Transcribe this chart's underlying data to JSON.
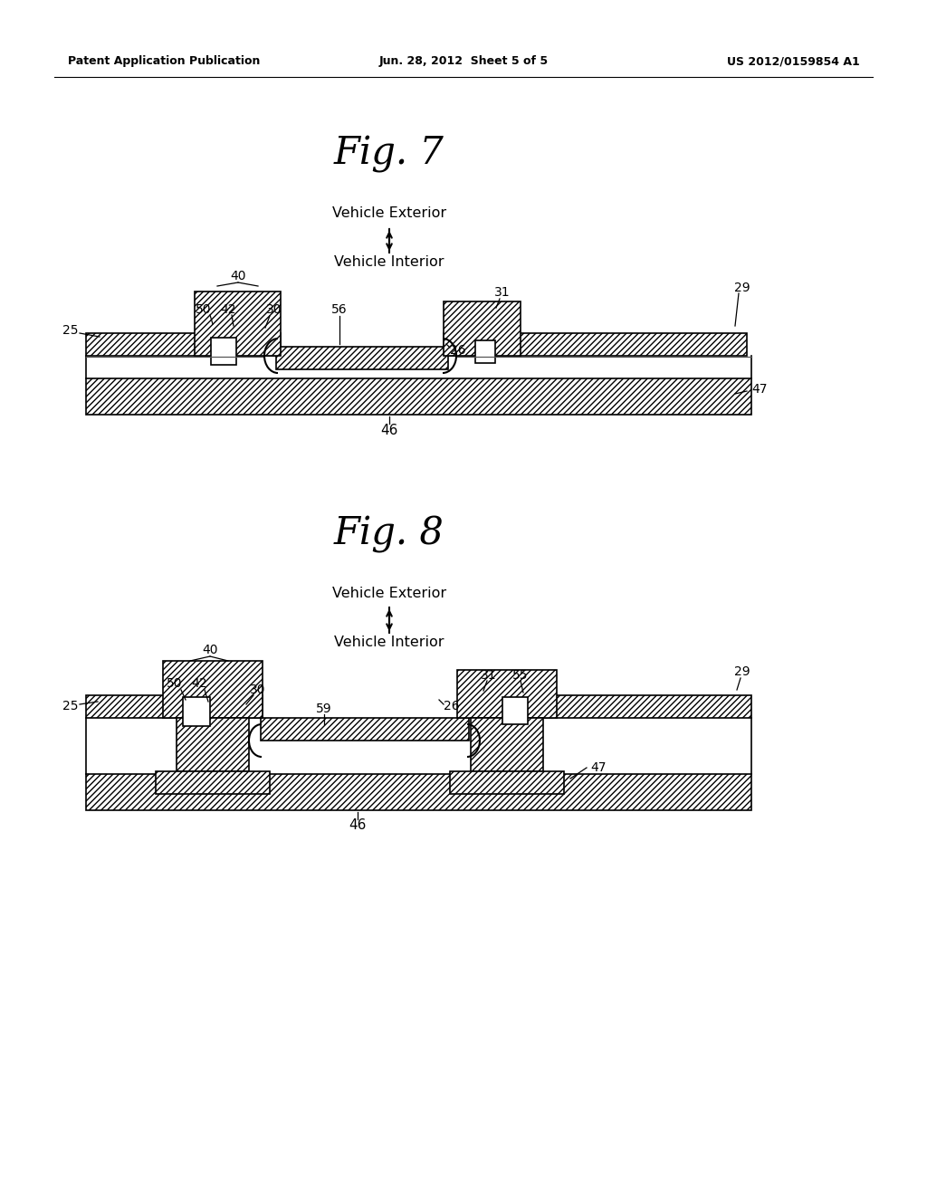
{
  "bg_color": "#ffffff",
  "text_color": "#000000",
  "header_left": "Patent Application Publication",
  "header_center": "Jun. 28, 2012  Sheet 5 of 5",
  "header_right": "US 2012/0159854 A1",
  "fig7_title": "Fig. 7",
  "fig8_title": "Fig. 8",
  "vehicle_exterior": "Vehicle Exterior",
  "vehicle_interior": "Vehicle Interior"
}
